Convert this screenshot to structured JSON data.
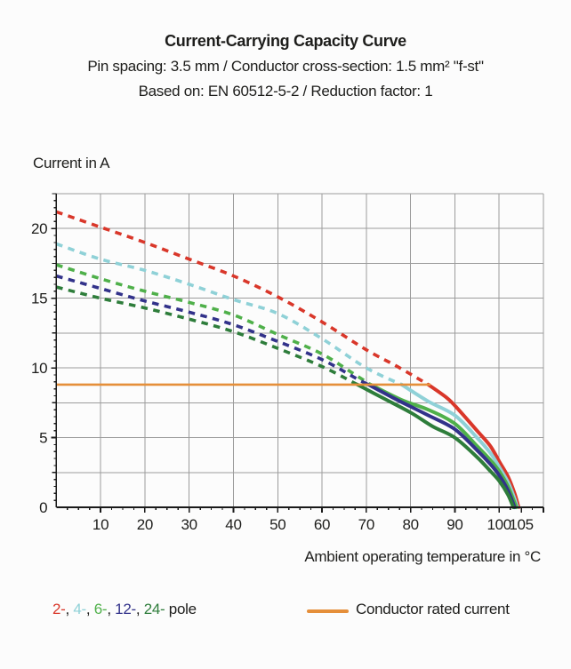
{
  "header": {
    "title": "Current-Carrying Capacity Curve",
    "subtitle1": "Pin spacing: 3.5 mm / Conductor cross-section: 1.5 mm² \"f-st\"",
    "subtitle2": "Based on: EN 60512-5-2 / Reduction factor: 1"
  },
  "axes": {
    "y_title": "Current in A",
    "x_title": "Ambient operating temperature in °C"
  },
  "legend": {
    "pole_items": [
      {
        "label": "2-",
        "color": "#d9372a"
      },
      {
        "label": "4-",
        "color": "#8fd1d7"
      },
      {
        "label": "6-",
        "color": "#4fb04a"
      },
      {
        "label": "12-",
        "color": "#32328a"
      },
      {
        "label": "24-",
        "color": "#2e7d3b"
      }
    ],
    "separator": ", ",
    "pole_suffix": " pole",
    "rated_label": "Conductor rated current"
  },
  "colors": {
    "grid": "#9c9c9c",
    "axis": "#1a1a1a",
    "text": "#1d1d1b",
    "rated": "#e58f3a",
    "background": "#fcfcfc"
  },
  "chart_data": {
    "type": "line",
    "title": "Current-Carrying Capacity Curve",
    "xlabel": "Ambient operating temperature in °C",
    "ylabel": "Current in A",
    "x_range": [
      0,
      110
    ],
    "y_range": [
      0,
      22.5
    ],
    "x_grid_step": 10,
    "y_grid_step": 2.5,
    "x_minor_tick_step": 2.5,
    "y_minor_tick_step": 0.5,
    "x_ticks": [
      10,
      20,
      30,
      40,
      50,
      60,
      70,
      80,
      90,
      100,
      105
    ],
    "y_ticks": [
      0,
      5,
      10,
      15,
      20
    ],
    "grid": true,
    "legend_position": "bottom",
    "series": [
      {
        "name": "2-pole",
        "poles": 2,
        "color": "#d9372a",
        "style": "dashed-then-solid",
        "dashed": [
          [
            0,
            21.2
          ],
          [
            10,
            20.1
          ],
          [
            20,
            19.0
          ],
          [
            30,
            17.8
          ],
          [
            40,
            16.6
          ],
          [
            50,
            15.1
          ],
          [
            60,
            13.3
          ],
          [
            70,
            11.3
          ],
          [
            77,
            10.1
          ],
          [
            84,
            8.8
          ]
        ],
        "solid": [
          [
            84,
            8.8
          ],
          [
            88,
            7.9
          ],
          [
            90,
            7.3
          ],
          [
            95,
            5.5
          ],
          [
            98,
            4.4
          ],
          [
            100,
            3.3
          ],
          [
            102,
            2.2
          ],
          [
            103.5,
            1.0
          ],
          [
            104.4,
            0
          ]
        ]
      },
      {
        "name": "4-pole",
        "poles": 4,
        "color": "#8fd1d7",
        "style": "dashed-then-solid",
        "dashed": [
          [
            0,
            18.9
          ],
          [
            10,
            17.8
          ],
          [
            20,
            17.0
          ],
          [
            30,
            16.0
          ],
          [
            40,
            14.9
          ],
          [
            50,
            13.9
          ],
          [
            60,
            12.1
          ],
          [
            70,
            10.0
          ],
          [
            78,
            8.8
          ]
        ],
        "solid": [
          [
            78,
            8.8
          ],
          [
            84,
            7.6
          ],
          [
            90,
            6.6
          ],
          [
            95,
            5.0
          ],
          [
            98,
            3.9
          ],
          [
            100,
            2.9
          ],
          [
            102,
            1.8
          ],
          [
            103.4,
            0.7
          ],
          [
            104.1,
            0
          ]
        ]
      },
      {
        "name": "6-pole",
        "poles": 6,
        "color": "#4fb04a",
        "style": "dashed-then-solid",
        "dashed": [
          [
            0,
            17.4
          ],
          [
            10,
            16.4
          ],
          [
            20,
            15.5
          ],
          [
            30,
            14.7
          ],
          [
            40,
            13.8
          ],
          [
            50,
            12.4
          ],
          [
            60,
            11.0
          ],
          [
            68,
            9.4
          ],
          [
            71,
            8.8
          ]
        ],
        "solid": [
          [
            71,
            8.8
          ],
          [
            78,
            7.7
          ],
          [
            84,
            7.0
          ],
          [
            90,
            6.0
          ],
          [
            95,
            4.4
          ],
          [
            98,
            3.4
          ],
          [
            100,
            2.6
          ],
          [
            102,
            1.5
          ],
          [
            103.9,
            0
          ]
        ]
      },
      {
        "name": "12-pole",
        "poles": 12,
        "color": "#32328a",
        "style": "dashed-then-solid",
        "dashed": [
          [
            0,
            16.6
          ],
          [
            10,
            15.7
          ],
          [
            20,
            14.8
          ],
          [
            30,
            14.0
          ],
          [
            40,
            13.1
          ],
          [
            50,
            11.9
          ],
          [
            60,
            10.6
          ],
          [
            68,
            9.2
          ],
          [
            70.5,
            8.8
          ]
        ],
        "solid": [
          [
            70.5,
            8.8
          ],
          [
            77,
            7.7
          ],
          [
            84,
            6.6
          ],
          [
            90,
            5.6
          ],
          [
            95,
            4.1
          ],
          [
            98,
            3.1
          ],
          [
            100,
            2.3
          ],
          [
            102,
            1.2
          ],
          [
            103.5,
            0
          ]
        ]
      },
      {
        "name": "24-pole",
        "poles": 24,
        "color": "#2e7d3b",
        "style": "dashed-then-solid",
        "dashed": [
          [
            0,
            15.8
          ],
          [
            10,
            15.0
          ],
          [
            20,
            14.3
          ],
          [
            30,
            13.5
          ],
          [
            40,
            12.6
          ],
          [
            50,
            11.4
          ],
          [
            60,
            10.1
          ],
          [
            68,
            8.8
          ]
        ],
        "solid": [
          [
            68,
            8.8
          ],
          [
            74,
            7.8
          ],
          [
            80,
            6.8
          ],
          [
            85,
            5.8
          ],
          [
            90,
            5.0
          ],
          [
            95,
            3.6
          ],
          [
            98,
            2.6
          ],
          [
            100,
            1.9
          ],
          [
            102,
            0.9
          ],
          [
            103.2,
            0
          ]
        ]
      }
    ],
    "rated_current": {
      "label": "Conductor rated current",
      "color": "#e58f3a",
      "current_a": 8.8,
      "x_start": 0,
      "x_end": 84.5
    }
  }
}
